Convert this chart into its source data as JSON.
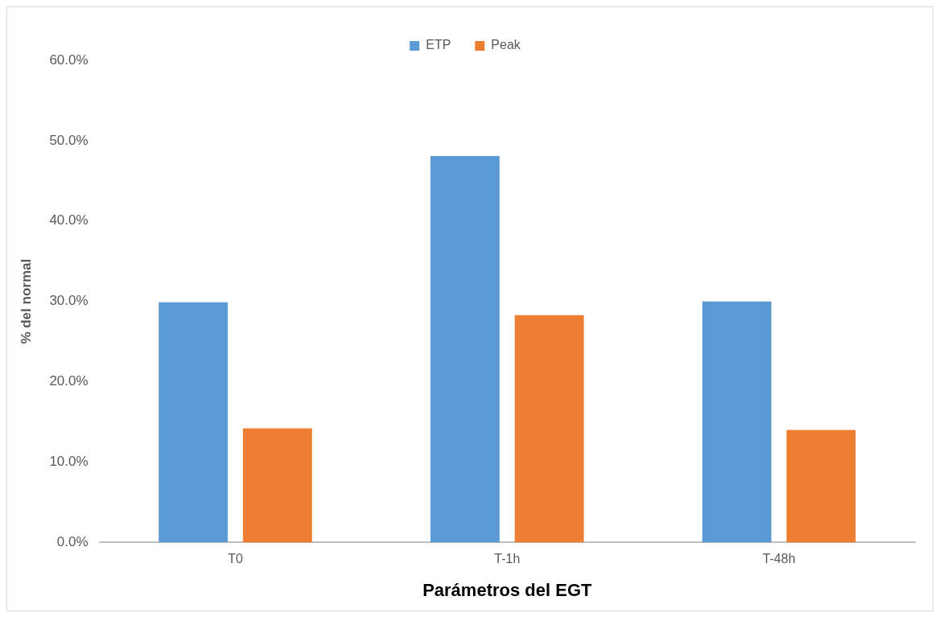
{
  "chart_data": {
    "type": "bar",
    "xlabel": "Parámetros del EGT",
    "ylabel": "% del normal",
    "categories": [
      "T0",
      "T-1h",
      "T-48h"
    ],
    "series": [
      {
        "name": "ETP",
        "color": "#5b9bd5",
        "values": [
          29.9,
          48.1,
          30.0
        ]
      },
      {
        "name": "Peak",
        "color": "#ed7d31",
        "values": [
          14.2,
          28.3,
          14.0
        ]
      }
    ],
    "ylim": [
      0,
      60
    ],
    "yticks": [
      {
        "value": 0,
        "label": "0.0%"
      },
      {
        "value": 10,
        "label": "10.0%"
      },
      {
        "value": 20,
        "label": "20.0%"
      },
      {
        "value": 30,
        "label": "30.0%"
      },
      {
        "value": 40,
        "label": "40.0%"
      },
      {
        "value": 50,
        "label": "50.0%"
      },
      {
        "value": 60,
        "label": "60.0%"
      }
    ],
    "grid": false,
    "legend": "top"
  }
}
